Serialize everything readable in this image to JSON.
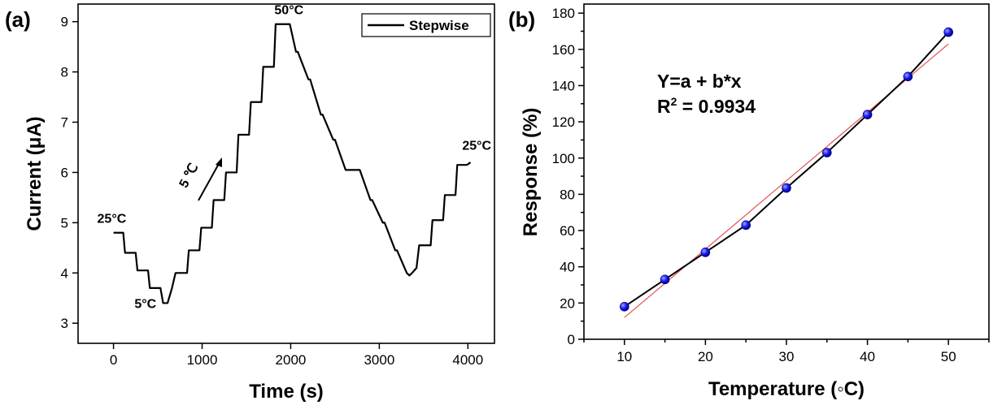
{
  "chart_data": [
    {
      "panel_label": "(a)",
      "type": "line",
      "xlabel": "Time (s)",
      "ylabel": "Current (μA)",
      "xlim": [
        -400,
        4300
      ],
      "ylim": [
        2.6,
        9.35
      ],
      "xticks": [
        0,
        1000,
        2000,
        3000,
        4000
      ],
      "yticks": [
        3,
        4,
        5,
        6,
        7,
        8,
        9
      ],
      "legend": {
        "position": "top-right",
        "entries": [
          "Stepwise"
        ]
      },
      "series": [
        {
          "name": "Stepwise",
          "color": "#000000",
          "x": [
            0,
            110,
            130,
            250,
            270,
            390,
            410,
            530,
            560,
            610,
            660,
            700,
            720,
            830,
            850,
            970,
            990,
            1110,
            1130,
            1250,
            1270,
            1390,
            1410,
            1530,
            1550,
            1670,
            1690,
            1810,
            1830,
            1920,
            1950,
            1990,
            2060,
            2080,
            2200,
            2220,
            2340,
            2360,
            2480,
            2500,
            2620,
            2640,
            2760,
            2780,
            2900,
            2920,
            3040,
            3060,
            3180,
            3200,
            3310,
            3340,
            3370,
            3420,
            3450,
            3580,
            3600,
            3720,
            3740,
            3860,
            3880,
            3990,
            4030
          ],
          "y": [
            4.8,
            4.8,
            4.4,
            4.4,
            4.05,
            4.05,
            3.7,
            3.7,
            3.4,
            3.4,
            3.7,
            4.0,
            4.0,
            4.0,
            4.45,
            4.45,
            4.9,
            4.9,
            5.45,
            5.45,
            6.0,
            6.0,
            6.75,
            6.75,
            7.4,
            7.4,
            8.1,
            8.1,
            8.95,
            8.95,
            8.95,
            8.95,
            8.4,
            8.4,
            7.85,
            7.85,
            7.15,
            7.15,
            6.65,
            6.65,
            6.05,
            6.05,
            6.05,
            6.05,
            5.45,
            5.45,
            5.0,
            5.0,
            4.45,
            4.45,
            4.0,
            3.95,
            4.0,
            4.1,
            4.55,
            4.55,
            5.05,
            5.05,
            5.55,
            5.55,
            6.15,
            6.15,
            6.2
          ]
        }
      ],
      "annotations": [
        {
          "text": "25°C",
          "x": -20,
          "y": 5.0
        },
        {
          "text": "5°C",
          "x": 360,
          "y": 3.3
        },
        {
          "text": "50°C",
          "x": 1980,
          "y": 9.15
        },
        {
          "text": "25°C",
          "x": 4100,
          "y": 6.45
        },
        {
          "text": "5 ℃",
          "x": 890,
          "y": 5.9
        }
      ]
    },
    {
      "panel_label": "(b)",
      "type": "scatter",
      "xlabel": "Temperature (◦C)",
      "ylabel": "Response (%)",
      "xlim": [
        5,
        55
      ],
      "ylim": [
        0,
        185
      ],
      "xticks": [
        10,
        20,
        30,
        40,
        50
      ],
      "yticks": [
        0,
        20,
        40,
        60,
        80,
        100,
        120,
        140,
        160,
        180
      ],
      "series": [
        {
          "name": "",
          "marker_color": "#1a1aff",
          "line_color": "#000000",
          "x": [
            10,
            15,
            20,
            25,
            30,
            35,
            40,
            45,
            50
          ],
          "y": [
            18,
            33,
            48,
            63,
            83.5,
            103,
            124,
            145,
            169.5
          ]
        }
      ],
      "fit": {
        "color": "#e05555",
        "x": [
          10,
          50
        ],
        "y": [
          12,
          163
        ]
      },
      "equation": {
        "line1": "Y=a + b*x",
        "line2_prefix": "R",
        "line2_sup": "2",
        "line2_suffix": " = 0.9934"
      }
    }
  ]
}
